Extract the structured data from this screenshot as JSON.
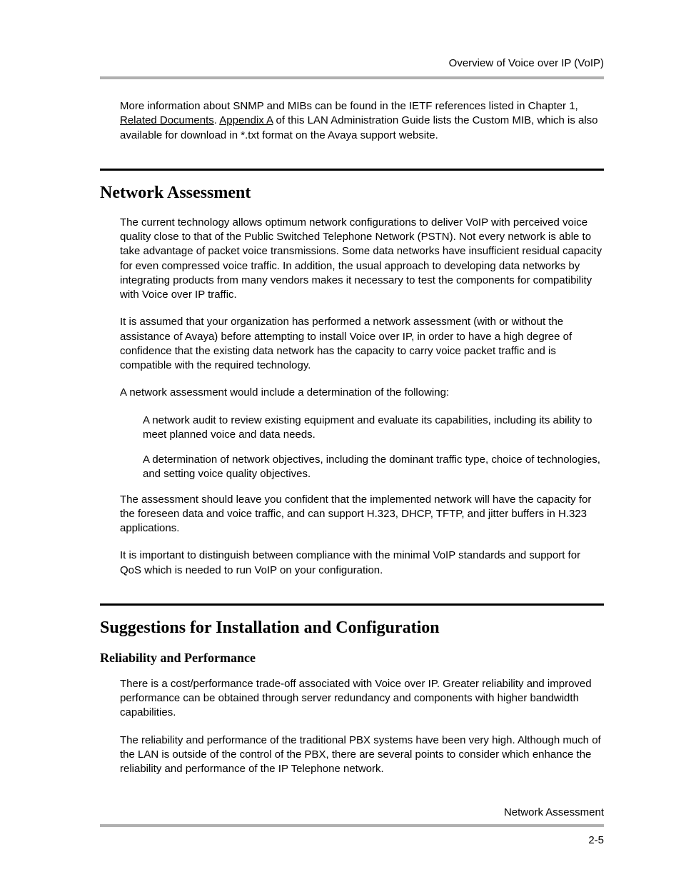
{
  "header": {
    "title": "Overview of Voice over IP (VoIP)"
  },
  "intro": {
    "pre": "More information about SNMP and MIBs can be found in the IETF references listed in Chapter 1, ",
    "link1": "Related Documents",
    "mid": ". ",
    "link2": "Appendix A",
    "post": " of this LAN Administration Guide lists the Custom MIB, which is also available for download in *.txt format on the Avaya support website."
  },
  "section1": {
    "heading": "Network Assessment",
    "p1": "The current technology allows optimum network configurations to deliver VoIP with perceived voice quality close to that of the Public Switched Telephone Network (PSTN). Not every network is able to take advantage of packet voice transmissions. Some data networks have insufficient residual capacity for even compressed voice traffic. In addition, the usual approach to developing data networks by integrating products from many vendors makes it necessary to test the components for compatibility with Voice over IP traffic.",
    "p2": "It is assumed that your organization has performed a network assessment (with or without the assistance of Avaya) before attempting to install Voice over IP, in order to have a high degree of confidence that the existing data network has the capacity to carry voice packet traffic and is compatible with the required technology.",
    "p3": "A network assessment would include a determination of the following:",
    "b1": "A network audit to review existing equipment and evaluate its capabilities, including its ability to meet planned voice and data needs.",
    "b2": "A determination of network objectives, including the dominant traffic type, choice of technologies, and setting voice quality objectives.",
    "p4": "The assessment should leave you confident that the implemented network will have the capacity for the foreseen data and voice traffic, and can support H.323, DHCP, TFTP, and jitter buffers in H.323 applications.",
    "p5": "It is important to distinguish between compliance with the minimal VoIP standards and support for QoS which is needed to run VoIP on your configuration."
  },
  "section2": {
    "heading": "Suggestions for Installation and Configuration",
    "sub1": {
      "heading": "Reliability and Performance",
      "p1": "There is a cost/performance trade-off associated with Voice over IP. Greater reliability and improved performance can be obtained through server redundancy and components with higher bandwidth capabilities.",
      "p2": "The reliability and performance of the traditional PBX systems have been very high. Although much of the LAN is outside of the control of the PBX, there are several points to consider which enhance the reliability and performance of the IP Telephone network."
    }
  },
  "footer": {
    "title": "Network Assessment",
    "page": "2-5"
  }
}
